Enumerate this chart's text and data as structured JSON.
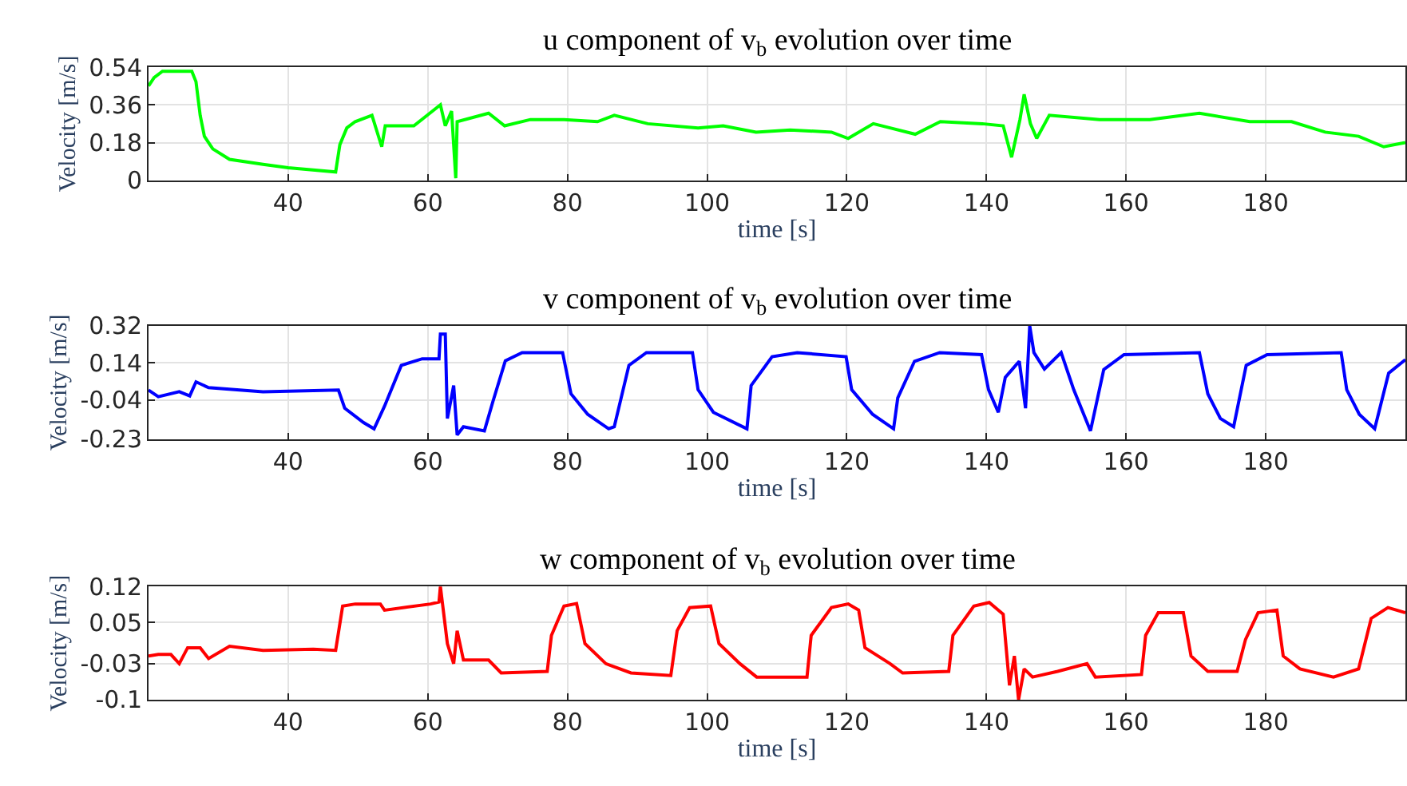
{
  "chart_data": [
    {
      "type": "line",
      "title": "u component of v$_{b}$ evolution over time",
      "xlabel": "time [s]",
      "ylabel": "Velocity [m/s]",
      "xlim": [
        20,
        200
      ],
      "xticks": [
        40,
        60,
        80,
        100,
        120,
        140,
        160,
        180
      ],
      "ylim": [
        0,
        0.54
      ],
      "yticks": [
        0,
        0.18,
        0.36,
        0.54
      ],
      "grid": true,
      "series": [
        {
          "color": "#00ff00",
          "x": [
            20,
            20.8,
            22,
            24.4,
            26.2,
            26.8,
            27.4,
            28,
            29.2,
            31.6,
            36.4,
            40,
            46.8,
            47.4,
            48.4,
            49.6,
            52,
            53.4,
            53.9,
            58,
            61.8,
            62.5,
            63.4,
            64,
            64.2,
            68.7,
            71,
            74.7,
            79.5,
            84.3,
            86.7,
            91.5,
            98.7,
            102.3,
            107,
            111.9,
            117.8,
            120.2,
            123.8,
            126.2,
            129.8,
            133.4,
            139.4,
            142.4,
            143.6,
            144.8,
            145.4,
            146.3,
            147.2,
            149,
            156.2,
            163.4,
            170.5,
            177.7,
            183.7,
            188.5,
            193.3,
            196.9,
            200
          ],
          "values": [
            0.45,
            0.49,
            0.52,
            0.52,
            0.52,
            0.47,
            0.31,
            0.21,
            0.15,
            0.1,
            0.076,
            0.06,
            0.04,
            0.17,
            0.25,
            0.28,
            0.31,
            0.16,
            0.26,
            0.26,
            0.36,
            0.26,
            0.33,
            0.01,
            0.28,
            0.32,
            0.26,
            0.29,
            0.29,
            0.28,
            0.31,
            0.27,
            0.25,
            0.26,
            0.23,
            0.24,
            0.23,
            0.2,
            0.27,
            0.25,
            0.22,
            0.28,
            0.27,
            0.26,
            0.11,
            0.29,
            0.41,
            0.27,
            0.2,
            0.31,
            0.29,
            0.29,
            0.32,
            0.28,
            0.28,
            0.23,
            0.21,
            0.16,
            0.18
          ]
        }
      ]
    },
    {
      "type": "line",
      "title": "v component of v$_{b}$ evolution over time",
      "xlabel": "time [s]",
      "ylabel": "Velocity [m/s]",
      "xlim": [
        20,
        200
      ],
      "xticks": [
        40,
        60,
        80,
        100,
        120,
        140,
        160,
        180
      ],
      "ylim": [
        -0.23,
        0.32
      ],
      "yticks": [
        -0.23,
        -0.04,
        0.14,
        0.32
      ],
      "grid": true,
      "series": [
        {
          "color": "#0000ff",
          "x": [
            20,
            21.4,
            24.4,
            25.9,
            26.8,
            28.6,
            36.4,
            47.2,
            48.1,
            50.8,
            52.3,
            53.8,
            56.2,
            59.2,
            61.6,
            61.8,
            62.5,
            62.8,
            63.7,
            64.2,
            65.1,
            68.1,
            69.3,
            71.1,
            73.5,
            79.3,
            80.5,
            82.9,
            85.9,
            86.7,
            88.8,
            91.3,
            97.9,
            98.7,
            100.9,
            105.7,
            106.3,
            109.3,
            112.9,
            119.9,
            120.7,
            123.7,
            126.7,
            127.3,
            129.7,
            133.3,
            139.3,
            140.3,
            141.7,
            142.7,
            144.7,
            145.6,
            146.2,
            146.8,
            148.3,
            150.7,
            152.5,
            154.9,
            156.8,
            159.7,
            170.5,
            171.7,
            173.5,
            175.4,
            177.2,
            180.2,
            190.8,
            191.6,
            193.4,
            195.6,
            197.6,
            200
          ],
          "values": [
            0.008,
            -0.024,
            0,
            -0.02,
            0.048,
            0.02,
            0,
            0.008,
            -0.08,
            -0.15,
            -0.18,
            -0.07,
            0.128,
            0.16,
            0.16,
            0.28,
            0.28,
            -0.13,
            0.03,
            -0.21,
            -0.17,
            -0.19,
            -0.05,
            0.15,
            0.19,
            0.19,
            -0.01,
            -0.11,
            -0.18,
            -0.17,
            0.128,
            0.19,
            0.19,
            0.01,
            -0.1,
            -0.18,
            0.03,
            0.17,
            0.19,
            0.17,
            0.01,
            -0.11,
            -0.18,
            -0.03,
            0.148,
            0.19,
            0.18,
            0.01,
            -0.1,
            0.07,
            0.148,
            -0.08,
            0.32,
            0.19,
            0.11,
            0.19,
            0.01,
            -0.19,
            0.108,
            0.18,
            0.19,
            -0.01,
            -0.13,
            -0.17,
            0.128,
            0.18,
            0.19,
            0.01,
            -0.11,
            -0.18,
            0.09,
            0.156
          ]
        }
      ]
    },
    {
      "type": "line",
      "title": "w component of v$_{b}$ evolution over time",
      "xlabel": "time [s]",
      "ylabel": "Velocity [m/s]",
      "xlim": [
        20,
        200
      ],
      "xticks": [
        40,
        60,
        80,
        100,
        120,
        140,
        160,
        180
      ],
      "ylim": [
        -0.1,
        0.12
      ],
      "yticks": [
        -0.1,
        -0.03,
        0.05,
        0.12
      ],
      "grid": true,
      "series": [
        {
          "color": "#ff0000",
          "x": [
            20,
            21.4,
            23.2,
            24.4,
            25.6,
            27.4,
            28.6,
            31.6,
            36.4,
            43.6,
            46.8,
            47.8,
            49.6,
            53.2,
            53.8,
            60.4,
            61.6,
            61.8,
            62.8,
            63.7,
            64.2,
            65.1,
            68.7,
            70.5,
            77.1,
            77.7,
            79.5,
            81.3,
            82.5,
            85.5,
            89.1,
            94.8,
            95.7,
            97.5,
            100.5,
            101.7,
            104.7,
            107.1,
            114.3,
            114.9,
            117.8,
            120.2,
            121.7,
            122.6,
            126.2,
            128,
            134.6,
            135.2,
            138.2,
            140.4,
            142.4,
            143.3,
            144,
            144.6,
            145.4,
            146.6,
            150.2,
            154.4,
            155.6,
            162.2,
            162.8,
            164.6,
            168.2,
            169.3,
            171.7,
            175.9,
            177.1,
            178.9,
            181.6,
            182.5,
            184.9,
            189.7,
            193.3,
            195.1,
            197.5,
            200
          ],
          "values": [
            -0.015,
            -0.012,
            -0.012,
            -0.03,
            0.001,
            0.001,
            -0.02,
            0.004,
            -0.004,
            -0.002,
            -0.004,
            0.082,
            0.086,
            0.086,
            0.074,
            0.086,
            0.09,
            0.12,
            0.009,
            -0.03,
            0.034,
            -0.023,
            -0.023,
            -0.048,
            -0.045,
            0.025,
            0.082,
            0.087,
            0.009,
            -0.03,
            -0.048,
            -0.053,
            0.034,
            0.079,
            0.082,
            0.009,
            -0.03,
            -0.056,
            -0.056,
            0.025,
            0.079,
            0.086,
            0.074,
            0.001,
            -0.03,
            -0.048,
            -0.045,
            0.025,
            0.082,
            0.089,
            0.066,
            -0.072,
            -0.015,
            -0.1,
            -0.04,
            -0.056,
            -0.045,
            -0.03,
            -0.056,
            -0.051,
            0.025,
            0.069,
            0.069,
            -0.015,
            -0.045,
            -0.045,
            0.017,
            0.069,
            0.074,
            -0.015,
            -0.04,
            -0.056,
            -0.04,
            0.058,
            0.079,
            0.069
          ]
        }
      ]
    }
  ]
}
